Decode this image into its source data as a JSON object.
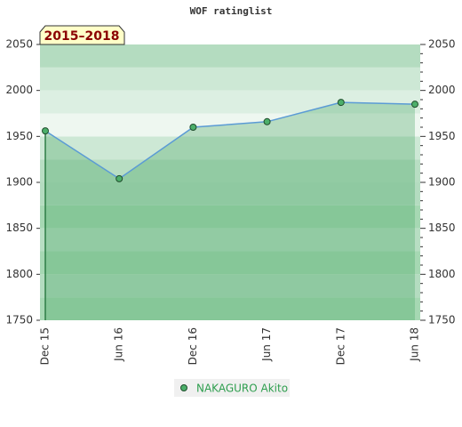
{
  "chart_data": {
    "type": "line",
    "title": "WOF ratinglist",
    "period": "2015–2018",
    "categories": [
      "Dec 15",
      "Jun 16",
      "Dec 16",
      "Jun 17",
      "Dec 17",
      "Jun 18"
    ],
    "series": [
      {
        "name": "NAKAGURO Akito",
        "color": "#5b9bd5",
        "marker_color": "#4caf6a",
        "values": [
          1956,
          1904,
          1960,
          1966,
          1987,
          1985
        ]
      }
    ],
    "ylim": [
      1750,
      2050
    ],
    "yticks": [
      1750,
      1800,
      1850,
      1900,
      1950,
      2000,
      2050
    ],
    "y2lim": [
      1750,
      2050
    ],
    "y2ticks": [
      1750,
      1800,
      1850,
      1900,
      1950,
      2000,
      2050
    ],
    "legend": "bottom"
  }
}
